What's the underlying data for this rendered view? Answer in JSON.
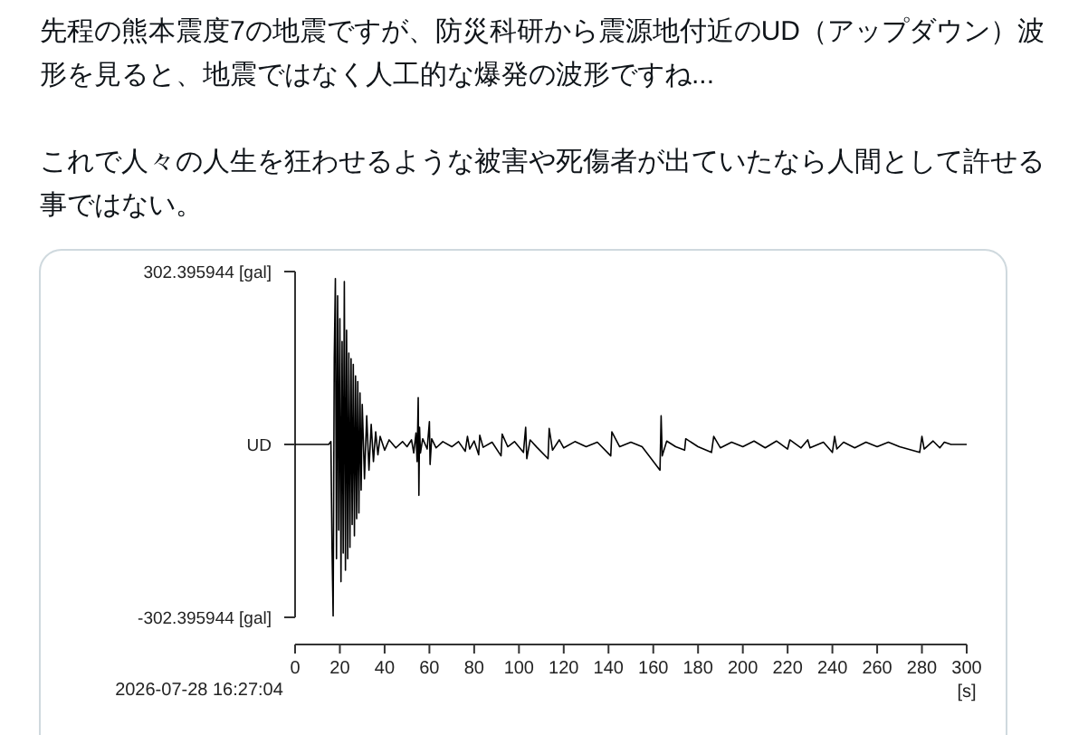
{
  "chart_data": {
    "type": "line",
    "title": "先程の熊本震度7の地震ですが、防災科研から震源地付近のUD（アップダウン）波形を見ると、地震ではなく人工的な爆発の波形ですね...",
    "subtitle": "これで人々の人生を狂わせるような被害や死傷者が出ていたなら人間として許せる事ではない。",
    "xlabel": "[s]",
    "annotations": [
      "2026-07-28 16:27:04"
    ],
    "xlim": [
      0,
      300
    ],
    "xticks": [
      0,
      20,
      40,
      60,
      80,
      100,
      120,
      140,
      160,
      180,
      200,
      220,
      240,
      260,
      280,
      300
    ],
    "ylim": [
      -302.395944,
      302.395944
    ],
    "yticks": [
      {
        "value": -302.395944,
        "label": "-302.395944 [gal]"
      },
      {
        "value": 0,
        "label": "UD"
      },
      {
        "value": 302.395944,
        "label": "302.395944 [gal]"
      }
    ],
    "grid": false,
    "marker": "none",
    "line_style": "solid",
    "series": [
      {
        "color": "#000000",
        "x": [
          0,
          15,
          16,
          16.5,
          17,
          17.5,
          18,
          18.5,
          19,
          19.5,
          20,
          20.5,
          21,
          21.5,
          22,
          22.5,
          23,
          23.5,
          24,
          24.5,
          25,
          25.5,
          26,
          26.5,
          27,
          27.5,
          28,
          28.5,
          29,
          29.5,
          30,
          31,
          32,
          33,
          34,
          35,
          36,
          37,
          38,
          40,
          42,
          45,
          48,
          50,
          52,
          53,
          54,
          54.5,
          55,
          55.3,
          55.6,
          56,
          57,
          59,
          60,
          60.3,
          61,
          63,
          66,
          70,
          73,
          76,
          77,
          78,
          80,
          82,
          82.5,
          84,
          88,
          92,
          92.5,
          95,
          98,
          102,
          103,
          103.5,
          105,
          108,
          113,
          113.5,
          115,
          118,
          120,
          125,
          130,
          135,
          141,
          141.5,
          145,
          150,
          155,
          163,
          163.5,
          164,
          166,
          170,
          174,
          174.5,
          180,
          186,
          187,
          190,
          195,
          200,
          205,
          210,
          215,
          220,
          221,
          226,
          229,
          230,
          236,
          240,
          241,
          242,
          245,
          250,
          255,
          260,
          265,
          270,
          279,
          280,
          281,
          285,
          288,
          290,
          293,
          300
        ],
        "values": [
          0,
          0,
          5,
          -180,
          -300,
          150,
          290,
          -200,
          260,
          -150,
          220,
          -240,
          180,
          -190,
          285,
          -220,
          200,
          -200,
          160,
          -180,
          150,
          -140,
          140,
          -160,
          120,
          -130,
          110,
          -120,
          90,
          -80,
          70,
          -60,
          50,
          -45,
          35,
          -30,
          22,
          -18,
          14,
          -10,
          8,
          -6,
          5,
          -4,
          8,
          -15,
          20,
          -30,
          82,
          -89,
          30,
          -15,
          10,
          -8,
          40,
          -35,
          10,
          -6,
          5,
          -4,
          5,
          -12,
          14,
          -8,
          6,
          -18,
          16,
          -5,
          4,
          -20,
          18,
          -4,
          5,
          -14,
          30,
          -25,
          8,
          -5,
          -25,
          28,
          -10,
          8,
          -6,
          5,
          -4,
          4,
          -20,
          22,
          -4,
          4,
          -4,
          -45,
          50,
          -20,
          6,
          -4,
          -10,
          10,
          -4,
          -14,
          14,
          -6,
          4,
          -4,
          6,
          -6,
          6,
          -8,
          8,
          -6,
          8,
          -6,
          4,
          -14,
          14,
          -8,
          4,
          -6,
          4,
          -4,
          4,
          -4,
          -14,
          14,
          -8,
          6,
          -6,
          4,
          0,
          0
        ]
      }
    ]
  }
}
